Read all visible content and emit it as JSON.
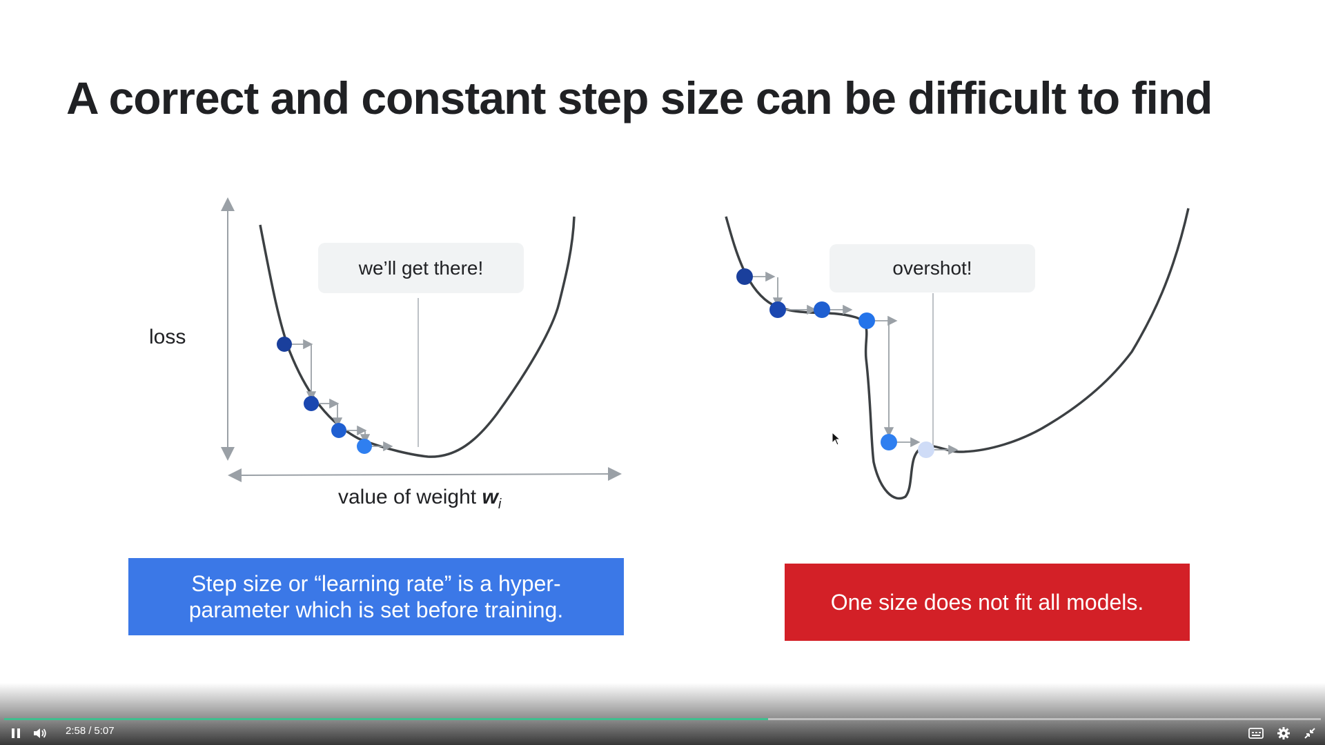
{
  "slide": {
    "title": "A correct and constant step size can be difficult to find",
    "left_diagram": {
      "callout": "we’ll get there!",
      "y_label": "loss",
      "x_label_text": "value of weight ",
      "x_label_symbol": "w",
      "x_label_subscript": "i"
    },
    "right_diagram": {
      "callout": "overshot!"
    },
    "notes": {
      "blue": "Step size or “learning rate” is a hyper-parameter which is set before training.",
      "red": "One size does not fit all models."
    },
    "colors": {
      "blue_box": "#3b78e7",
      "red_box": "#d32027",
      "point_dark": "#1a3f9c",
      "point_mid": "#1f5fd1",
      "point_light": "#2f7ff0",
      "point_faded": "#cfdcf7"
    }
  },
  "player": {
    "current_time": "2:58",
    "separator": "/",
    "duration": "5:07",
    "progress_fraction": 0.58,
    "icons": [
      "pause-icon",
      "volume-icon",
      "captions-icon",
      "settings-icon",
      "exit-fullscreen-icon"
    ]
  }
}
